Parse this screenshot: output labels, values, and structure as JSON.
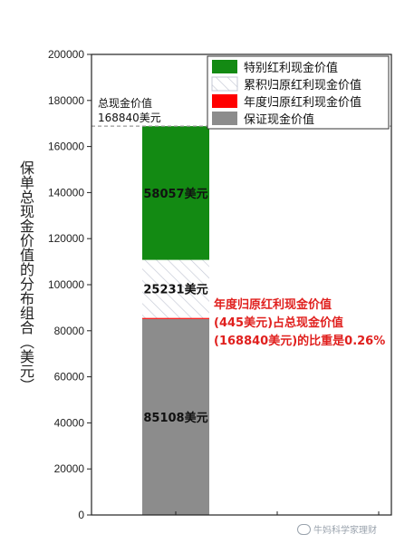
{
  "chart_data": {
    "type": "bar",
    "stacked": true,
    "categories": [
      ""
    ],
    "ylabel": "保单总现金价值的分布组合（美元）",
    "ylim": [
      0,
      200000
    ],
    "yticks": [
      0,
      20000,
      40000,
      60000,
      80000,
      100000,
      120000,
      140000,
      160000,
      180000,
      200000
    ],
    "grid": false,
    "legend_position": "top-right",
    "series": [
      {
        "name": "保证现金价值",
        "value": 85108,
        "label": "85108美元",
        "color": "#8c8c8c"
      },
      {
        "name": "年度归原红利现金价值",
        "value": 445,
        "label": "",
        "color": "#ff0000"
      },
      {
        "name": "累积归原红利现金价值",
        "value": 25231,
        "label": "25231美元",
        "color": "#ffffff",
        "pattern": "hatch"
      },
      {
        "name": "特别红利现金价值",
        "value": 58057,
        "label": "58057美元",
        "color": "#138a13"
      }
    ],
    "legend_order": [
      "特别红利现金价值",
      "累积归原红利现金价值",
      "年度归原红利现金价值",
      "保证现金价值"
    ],
    "total": {
      "value": 168840,
      "line1": "总现金价值",
      "line2": "168840美元"
    },
    "annotation": {
      "line1": "年度归原红利现金价值",
      "line2": "(445美元)占总现金价值",
      "line3": "(168840美元)的比重是0.26%",
      "color": "#e0201e"
    }
  },
  "watermark": "牛妈科学家理财"
}
